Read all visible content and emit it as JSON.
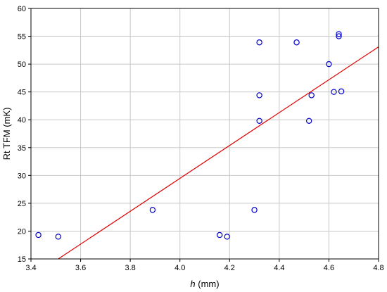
{
  "chart_data": {
    "type": "scatter",
    "title": "",
    "xlabel": "h",
    "xlabel_unit": "(mm)",
    "ylabel": "Rt TFM (mK)",
    "xlim": [
      3.4,
      4.8
    ],
    "ylim": [
      15,
      60
    ],
    "xticks": [
      "3.4",
      "3.6",
      "3.8",
      "4.0",
      "4.2",
      "4.4",
      "4.6",
      "4.8"
    ],
    "yticks": [
      "15",
      "20",
      "25",
      "30",
      "35",
      "40",
      "45",
      "50",
      "55",
      "60"
    ],
    "grid": true,
    "points": [
      {
        "x": 3.43,
        "y": 19.3
      },
      {
        "x": 3.51,
        "y": 19.0
      },
      {
        "x": 3.89,
        "y": 23.8
      },
      {
        "x": 4.16,
        "y": 19.3
      },
      {
        "x": 4.19,
        "y": 19.0
      },
      {
        "x": 4.3,
        "y": 23.8
      },
      {
        "x": 4.32,
        "y": 53.9
      },
      {
        "x": 4.32,
        "y": 44.4
      },
      {
        "x": 4.32,
        "y": 39.8
      },
      {
        "x": 4.47,
        "y": 53.9
      },
      {
        "x": 4.52,
        "y": 39.8
      },
      {
        "x": 4.53,
        "y": 44.4
      },
      {
        "x": 4.6,
        "y": 50.0
      },
      {
        "x": 4.62,
        "y": 45.0
      },
      {
        "x": 4.64,
        "y": 55.4
      },
      {
        "x": 4.64,
        "y": 55.0
      },
      {
        "x": 4.65,
        "y": 45.1
      }
    ],
    "fit_line": [
      {
        "x": 3.51,
        "y": 15.0
      },
      {
        "x": 4.8,
        "y": 53.1
      }
    ],
    "colors": {
      "points": "#0000cc",
      "fit_line": "#e00000",
      "grid": "#c8c8c8",
      "axes": "#000000"
    }
  }
}
